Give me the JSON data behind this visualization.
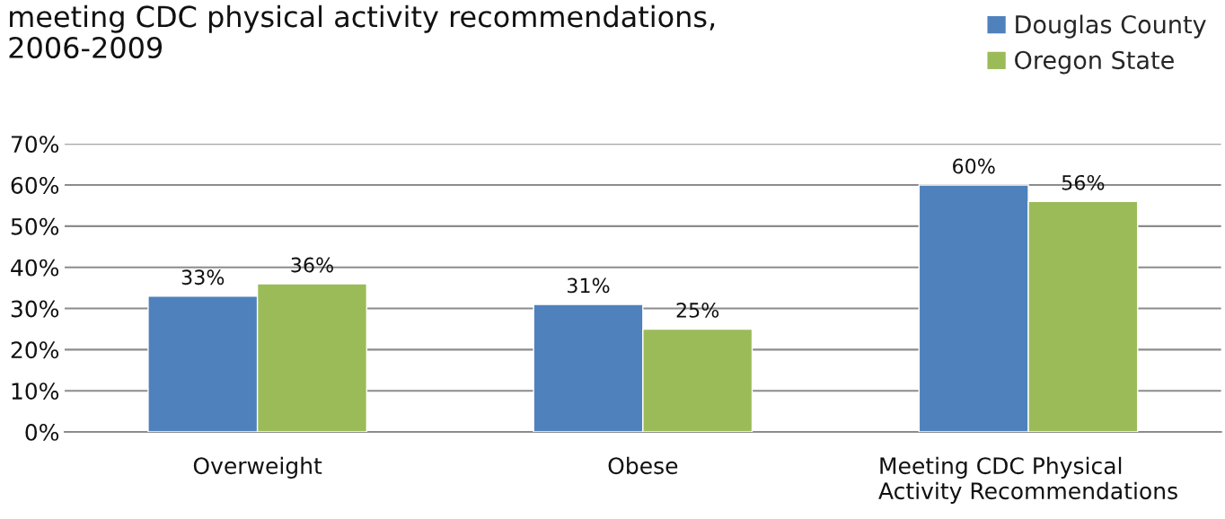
{
  "chart_data": {
    "type": "bar",
    "title": "meeting CDC physical activity recommendations, 2006-2009",
    "categories": [
      "Overweight",
      "Obese",
      "Meeting CDC Physical Activity Recommendations"
    ],
    "series": [
      {
        "name": "Douglas County",
        "color": "#4f81bd",
        "values": [
          33,
          31,
          60
        ],
        "value_labels": [
          "33%",
          "31%",
          "60%"
        ]
      },
      {
        "name": "Oregon State",
        "color": "#9bbb59",
        "values": [
          36,
          25,
          56
        ],
        "value_labels": [
          "36%",
          "25%",
          "56%"
        ]
      }
    ],
    "ylim": [
      0,
      70
    ],
    "yticks": [
      {
        "value": 0,
        "label": "0%"
      },
      {
        "value": 10,
        "label": "10%"
      },
      {
        "value": 20,
        "label": "20%"
      },
      {
        "value": 30,
        "label": "30%"
      },
      {
        "value": 40,
        "label": "40%"
      },
      {
        "value": 50,
        "label": "50%"
      },
      {
        "value": 60,
        "label": "60%"
      },
      {
        "value": 70,
        "label": "70%"
      }
    ],
    "grid": "y",
    "legend": "top right"
  }
}
